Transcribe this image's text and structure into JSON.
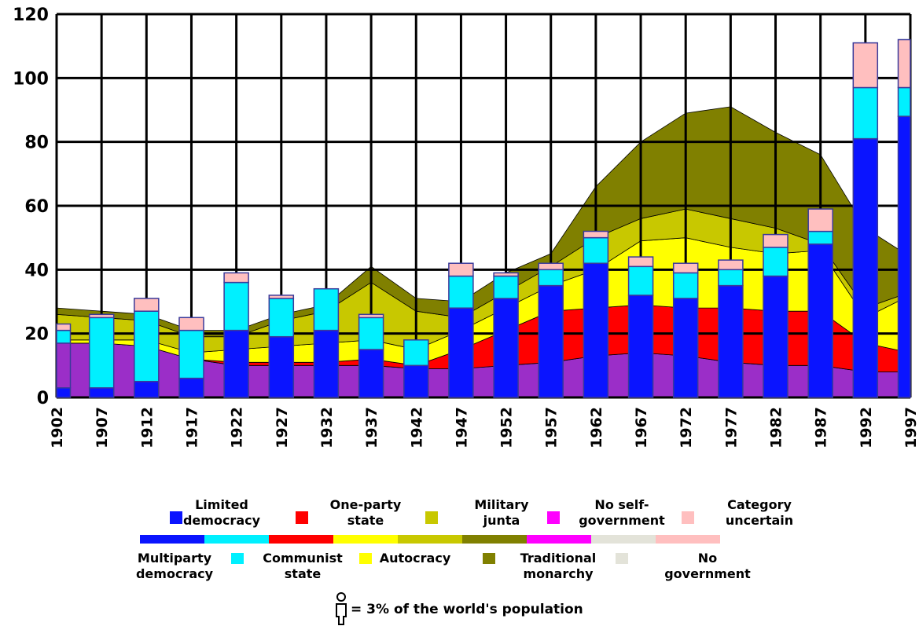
{
  "colors": {
    "multiparty_democracy": "#0a14ff",
    "limited_democracy": "#00f0ff",
    "communist_state": "#ff0000",
    "one_party_state": "#ffff00",
    "autocracy": "#c8c800",
    "military_junta": "#808000",
    "traditional_monarchy": "#ff00ff",
    "no_self_government": "#e3e3d9",
    "no_government": "#ffbfbf",
    "category_uncertain": "#ffbfbf",
    "lower_band": "#9b2ec8"
  },
  "chart_data": {
    "type": "area",
    "title": "",
    "xlabel": "",
    "ylabel": "",
    "ylim": [
      0,
      120
    ],
    "yticks": [
      "0",
      "20",
      "40",
      "60",
      "80",
      "100",
      "120"
    ],
    "grid": true,
    "legend_position": "bottom",
    "years": [
      "1902",
      "1907",
      "1912",
      "1917",
      "1922",
      "1927",
      "1932",
      "1937",
      "1942",
      "1947",
      "1952",
      "1957",
      "1962",
      "1967",
      "1972",
      "1977",
      "1982",
      "1987",
      "1992",
      "1997"
    ],
    "background_areas": {
      "years": [
        1902,
        1907,
        1912,
        1917,
        1922,
        1927,
        1932,
        1937,
        1942,
        1947,
        1952,
        1957,
        1962,
        1967,
        1972,
        1977,
        1982,
        1987,
        1992,
        1997
      ],
      "layers": [
        {
          "key": "lower_band",
          "values": [
            17,
            17,
            16,
            12,
            10,
            10,
            10,
            10,
            9,
            9,
            10,
            11,
            13,
            14,
            13,
            11,
            10,
            10,
            8,
            8
          ]
        },
        {
          "key": "communist_state",
          "values": [
            0,
            0,
            0,
            0,
            1,
            1,
            1,
            2,
            1,
            6,
            11,
            16,
            15,
            15,
            15,
            17,
            17,
            17,
            9,
            6
          ]
        },
        {
          "key": "one_party_state",
          "values": [
            1,
            1,
            2,
            2,
            4,
            5,
            6,
            6,
            5,
            6,
            7,
            8,
            12,
            20,
            22,
            19,
            18,
            19,
            8,
            18
          ]
        },
        {
          "key": "autocracy",
          "values": [
            8,
            7,
            6,
            5,
            4,
            8,
            10,
            18,
            12,
            4,
            5,
            6,
            10,
            7,
            9,
            9,
            8,
            2,
            3,
            1
          ]
        },
        {
          "key": "military_junta",
          "values": [
            2,
            2,
            2,
            2,
            2,
            2,
            2,
            5,
            4,
            5,
            6,
            4,
            16,
            24,
            30,
            35,
            30,
            28,
            25,
            11
          ]
        }
      ]
    },
    "bars": [
      {
        "year": "1902",
        "multiparty_democracy": 3,
        "lower_band": 14,
        "limited_democracy": 4,
        "pink_top": 2
      },
      {
        "year": "1907",
        "multiparty_democracy": 3,
        "lower_band": 0,
        "limited_democracy": 22,
        "pink_top": 1
      },
      {
        "year": "1912",
        "multiparty_democracy": 5,
        "lower_band": 0,
        "limited_democracy": 22,
        "pink_top": 4
      },
      {
        "year": "1917",
        "multiparty_democracy": 6,
        "lower_band": 0,
        "limited_democracy": 15,
        "pink_top": 4
      },
      {
        "year": "1922",
        "multiparty_democracy": 21,
        "lower_band": 0,
        "limited_democracy": 15,
        "pink_top": 3
      },
      {
        "year": "1927",
        "multiparty_democracy": 19,
        "lower_band": 0,
        "limited_democracy": 12,
        "pink_top": 1
      },
      {
        "year": "1932",
        "multiparty_democracy": 21,
        "lower_band": 0,
        "limited_democracy": 13,
        "pink_top": 0
      },
      {
        "year": "1937",
        "multiparty_democracy": 15,
        "lower_band": 0,
        "limited_democracy": 10,
        "pink_top": 1
      },
      {
        "year": "1942",
        "multiparty_democracy": 10,
        "lower_band": 0,
        "limited_democracy": 8,
        "pink_top": 0
      },
      {
        "year": "1947",
        "multiparty_democracy": 28,
        "lower_band": 0,
        "limited_democracy": 10,
        "pink_top": 4
      },
      {
        "year": "1952",
        "multiparty_democracy": 31,
        "lower_band": 0,
        "limited_democracy": 7,
        "pink_top": 1
      },
      {
        "year": "1957",
        "multiparty_democracy": 35,
        "lower_band": 0,
        "limited_democracy": 5,
        "pink_top": 2
      },
      {
        "year": "1962",
        "multiparty_democracy": 42,
        "lower_band": 0,
        "limited_democracy": 8,
        "pink_top": 2
      },
      {
        "year": "1967",
        "multiparty_democracy": 32,
        "lower_band": 0,
        "limited_democracy": 9,
        "pink_top": 3
      },
      {
        "year": "1972",
        "multiparty_democracy": 31,
        "lower_band": 0,
        "limited_democracy": 8,
        "pink_top": 3
      },
      {
        "year": "1977",
        "multiparty_democracy": 35,
        "lower_band": 0,
        "limited_democracy": 5,
        "pink_top": 3
      },
      {
        "year": "1982",
        "multiparty_democracy": 38,
        "lower_band": 0,
        "limited_democracy": 9,
        "pink_top": 4
      },
      {
        "year": "1987",
        "multiparty_democracy": 48,
        "lower_band": 0,
        "limited_democracy": 4,
        "pink_top": 7
      },
      {
        "year": "1992",
        "multiparty_democracy": 81,
        "lower_band": 0,
        "limited_democracy": 16,
        "pink_top": 14
      },
      {
        "year": "1997",
        "multiparty_democracy": 88,
        "lower_band": 0,
        "limited_democracy": 9,
        "pink_top": 15
      }
    ]
  },
  "legend": {
    "top": [
      {
        "key": "limited_democracy",
        "label_lines": [
          "Limited",
          "democracy"
        ],
        "icon": "square-icon",
        "swatch_color": "#0a14ff"
      },
      {
        "key": "one_party_state",
        "label_lines": [
          "One-party",
          "state"
        ],
        "icon": "star-icon",
        "swatch_color": "#ff0000"
      },
      {
        "key": "military_junta",
        "label_lines": [
          "Military",
          "junta"
        ],
        "icon": "figure-icon",
        "swatch_color": "#c8c800"
      },
      {
        "key": "no_self_government",
        "label_lines": [
          "No self-",
          "government"
        ],
        "icon": "dash-icon",
        "swatch_color": "#ff00ff"
      },
      {
        "key": "category_uncertain",
        "label_lines": [
          "Category",
          "uncertain"
        ],
        "icon": "x-icon",
        "swatch_color": "#ffbfbf"
      }
    ],
    "bottom": [
      {
        "key": "multiparty_democracy",
        "label_lines": [
          "Multiparty",
          "democracy"
        ],
        "icon": "none"
      },
      {
        "key": "communist_state",
        "label_lines": [
          "Communist",
          "state"
        ],
        "icon": "corner-icon",
        "swatch_color": "#00f0ff"
      },
      {
        "key": "autocracy",
        "label_lines": [
          "Autocracy"
        ],
        "icon": "bracket-icon",
        "swatch_color": "#ffff00"
      },
      {
        "key": "traditional_monarchy",
        "label_lines": [
          "Traditional",
          "monarchy"
        ],
        "icon": "crown-icon",
        "swatch_color": "#808000"
      },
      {
        "key": "no_government",
        "label_lines": [
          "No",
          "government"
        ],
        "icon": "hook-icon",
        "swatch_color": "#e3e3d9"
      }
    ],
    "color_bar": [
      "#0a14ff",
      "#00f0ff",
      "#ff0000",
      "#ffff00",
      "#c8c800",
      "#808000",
      "#ff00ff",
      "#e3e3d9",
      "#ffbfbf"
    ]
  },
  "caption": {
    "text": "= 3% of the world's population",
    "icon": "person-icon"
  }
}
